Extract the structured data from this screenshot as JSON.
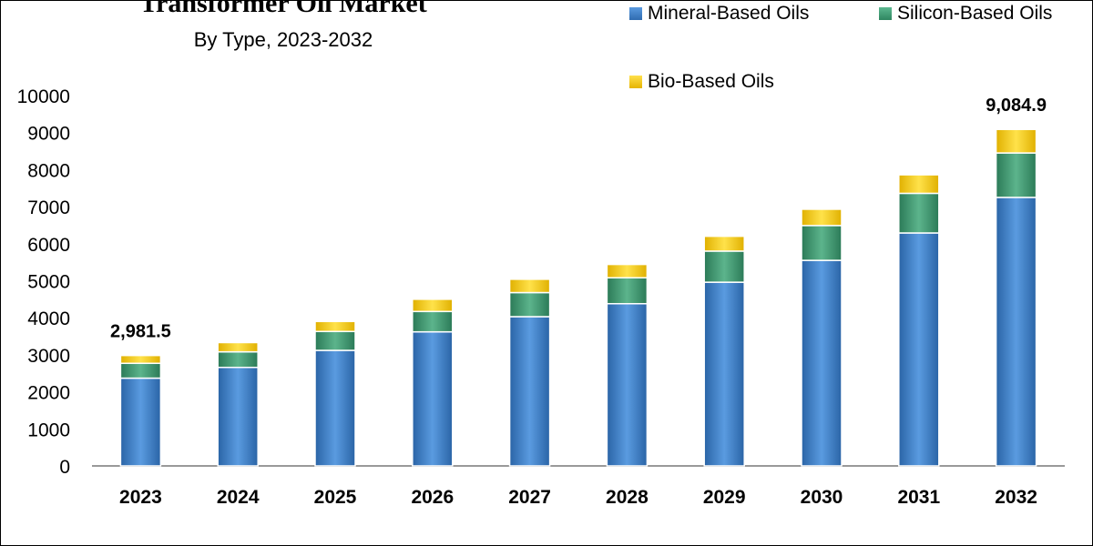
{
  "chart_data": {
    "type": "bar",
    "stacked": true,
    "title": "Transformer Oil Market",
    "subtitle": "By Type, 2023-2032",
    "categories": [
      "2023",
      "2024",
      "2025",
      "2026",
      "2027",
      "2028",
      "2029",
      "2030",
      "2031",
      "2032"
    ],
    "series": [
      {
        "name": "Mineral-Based Oils",
        "color": "#3a7cc4",
        "values": [
          2370,
          2660,
          3120,
          3620,
          4030,
          4380,
          4960,
          5550,
          6290,
          7250
        ]
      },
      {
        "name": "Silicon-Based Oils",
        "color": "#3c9a73",
        "values": [
          400,
          420,
          510,
          550,
          650,
          700,
          840,
          940,
          1070,
          1200
        ]
      },
      {
        "name": "Bio-Based Oils",
        "color": "#ffcc00",
        "values": [
          211.5,
          250,
          270,
          330,
          360,
          360,
          400,
          440,
          500,
          634.9
        ]
      }
    ],
    "data_labels": [
      {
        "category": "2023",
        "text": "2,981.5"
      },
      {
        "category": "2032",
        "text": "9,084.9"
      }
    ],
    "ylim": [
      0,
      10000
    ],
    "yticks": [
      0,
      1000,
      2000,
      3000,
      4000,
      5000,
      6000,
      7000,
      8000,
      9000,
      10000
    ],
    "grid": false,
    "legend": "top-right"
  }
}
